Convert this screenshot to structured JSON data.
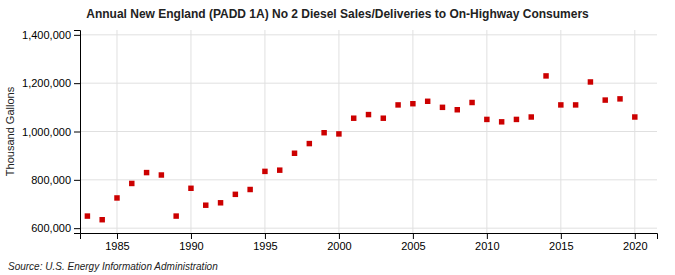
{
  "chart_data": {
    "type": "scatter",
    "title": "Annual New England (PADD 1A) No 2 Diesel Sales/Deliveries to On-Highway Consumers",
    "ylabel": "Thousand Gallons",
    "source": "Source: U.S. Energy Information Administration",
    "x": [
      1983,
      1984,
      1985,
      1986,
      1987,
      1988,
      1989,
      1990,
      1991,
      1992,
      1993,
      1994,
      1995,
      1996,
      1997,
      1998,
      1999,
      2000,
      2001,
      2002,
      2003,
      2004,
      2005,
      2006,
      2007,
      2008,
      2009,
      2010,
      2011,
      2012,
      2013,
      2014,
      2015,
      2016,
      2017,
      2018,
      2019,
      2020
    ],
    "values": [
      650000,
      635000,
      725000,
      785000,
      830000,
      820000,
      650000,
      765000,
      695000,
      705000,
      740000,
      760000,
      835000,
      840000,
      910000,
      950000,
      995000,
      990000,
      1055000,
      1070000,
      1055000,
      1110000,
      1115000,
      1125000,
      1100000,
      1090000,
      1120000,
      1050000,
      1040000,
      1050000,
      1060000,
      1230000,
      1110000,
      1110000,
      1205000,
      1130000,
      1135000,
      1060000
    ],
    "color": "#cc0000",
    "marker": "square",
    "xlim": [
      1982.5,
      2021.5
    ],
    "ylim": [
      580000,
      1420000
    ],
    "xticks": [
      1985,
      1990,
      1995,
      2000,
      2005,
      2010,
      2015,
      2020
    ],
    "yticks": [
      {
        "value": 600000,
        "label": "600,000"
      },
      {
        "value": 800000,
        "label": "800,000"
      },
      {
        "value": 1000000,
        "label": "1,000,000"
      },
      {
        "value": 1200000,
        "label": "1,200,000"
      },
      {
        "value": 1400000,
        "label": "1,400,000"
      }
    ],
    "grid": true
  }
}
